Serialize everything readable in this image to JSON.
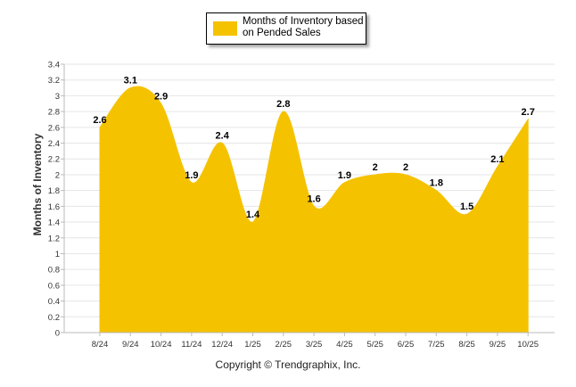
{
  "chart_data": {
    "type": "area",
    "categories": [
      "8/24",
      "9/24",
      "10/24",
      "11/24",
      "12/24",
      "1/25",
      "2/25",
      "3/25",
      "4/25",
      "5/25",
      "6/25",
      "7/25",
      "8/25",
      "9/25",
      "10/25"
    ],
    "series": [
      {
        "name": "Months of Inventory based on Pended Sales",
        "values": [
          2.6,
          3.1,
          2.9,
          1.9,
          2.4,
          1.4,
          2.8,
          1.6,
          1.9,
          2,
          2,
          1.8,
          1.5,
          2.1,
          2.7
        ],
        "color": "#F5C200"
      }
    ],
    "data_labels": [
      "2.6",
      "3.1",
      "2.9",
      "1.9",
      "2.4",
      "1.4",
      "2.8",
      "1.6",
      "1.9",
      "2",
      "2",
      "1.8",
      "1.5",
      "2.1",
      "2.7"
    ],
    "yticks": [
      "0",
      "0.2",
      "0.4",
      "0.6",
      "0.8",
      "1",
      "1.2",
      "1.4",
      "1.6",
      "1.8",
      "2",
      "2.2",
      "2.4",
      "2.6",
      "2.8",
      "3",
      "3.2",
      "3.4"
    ],
    "ylim": [
      0,
      3.4
    ],
    "ylabel": "Months of Inventory",
    "xlabel": "",
    "legend_position": "top-center",
    "grid": true
  },
  "legend": {
    "label": "Months of Inventory based on Pended Sales"
  },
  "footer": {
    "copyright": "Copyright © Trendgraphix, Inc."
  }
}
